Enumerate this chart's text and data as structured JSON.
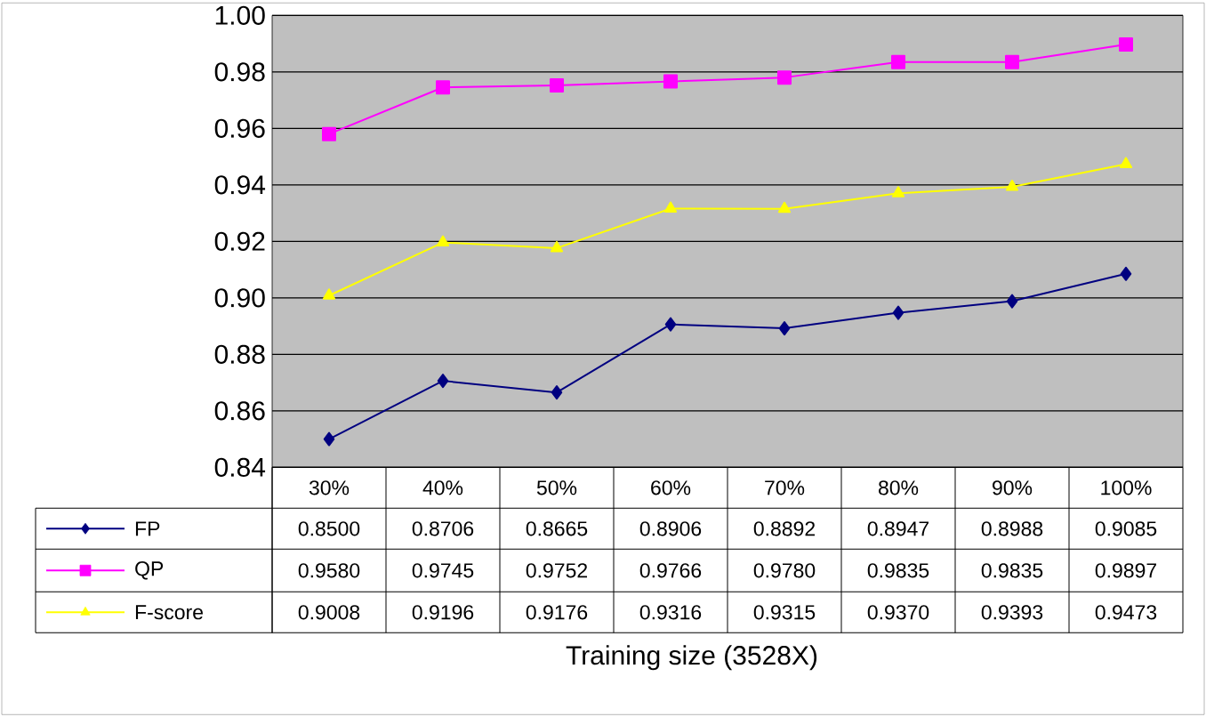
{
  "chart_data": {
    "type": "line",
    "annotations": [
      "Training size (3528X)"
    ],
    "categories": [
      "30%",
      "40%",
      "50%",
      "60%",
      "70%",
      "80%",
      "90%",
      "100%"
    ],
    "series": [
      {
        "name": "FP",
        "color": "#000080",
        "marker": "diamond",
        "values": [
          0.85,
          0.8706,
          0.8665,
          0.8906,
          0.8892,
          0.8947,
          0.8988,
          0.9085
        ],
        "value_labels": [
          "0.8500",
          "0.8706",
          "0.8665",
          "0.8906",
          "0.8892",
          "0.8947",
          "0.8988",
          "0.9085"
        ]
      },
      {
        "name": "QP",
        "color": "#ff00ff",
        "marker": "square",
        "values": [
          0.958,
          0.9745,
          0.9752,
          0.9766,
          0.978,
          0.9835,
          0.9835,
          0.9897
        ],
        "value_labels": [
          "0.9580",
          "0.9745",
          "0.9752",
          "0.9766",
          "0.9780",
          "0.9835",
          "0.9835",
          "0.9897"
        ]
      },
      {
        "name": "F-score",
        "color": "#ffff00",
        "marker": "triangle",
        "values": [
          0.9008,
          0.9196,
          0.9176,
          0.9316,
          0.9315,
          0.937,
          0.9393,
          0.9473
        ],
        "value_labels": [
          "0.9008",
          "0.9196",
          "0.9176",
          "0.9316",
          "0.9315",
          "0.9370",
          "0.9393",
          "0.9473"
        ]
      }
    ],
    "ylim": [
      0.84,
      1.0
    ],
    "yticks": [
      {
        "value": 0.84,
        "label": "0.84"
      },
      {
        "value": 0.86,
        "label": "0.86"
      },
      {
        "value": 0.88,
        "label": "0.88"
      },
      {
        "value": 0.9,
        "label": "0.90"
      },
      {
        "value": 0.92,
        "label": "0.92"
      },
      {
        "value": 0.94,
        "label": "0.94"
      },
      {
        "value": 0.96,
        "label": "0.96"
      },
      {
        "value": 0.98,
        "label": "0.98"
      },
      {
        "value": 1.0,
        "label": "1.00"
      }
    ],
    "grid": "y",
    "legend": "bottom left",
    "data_labels": true,
    "line_style": "solid"
  }
}
